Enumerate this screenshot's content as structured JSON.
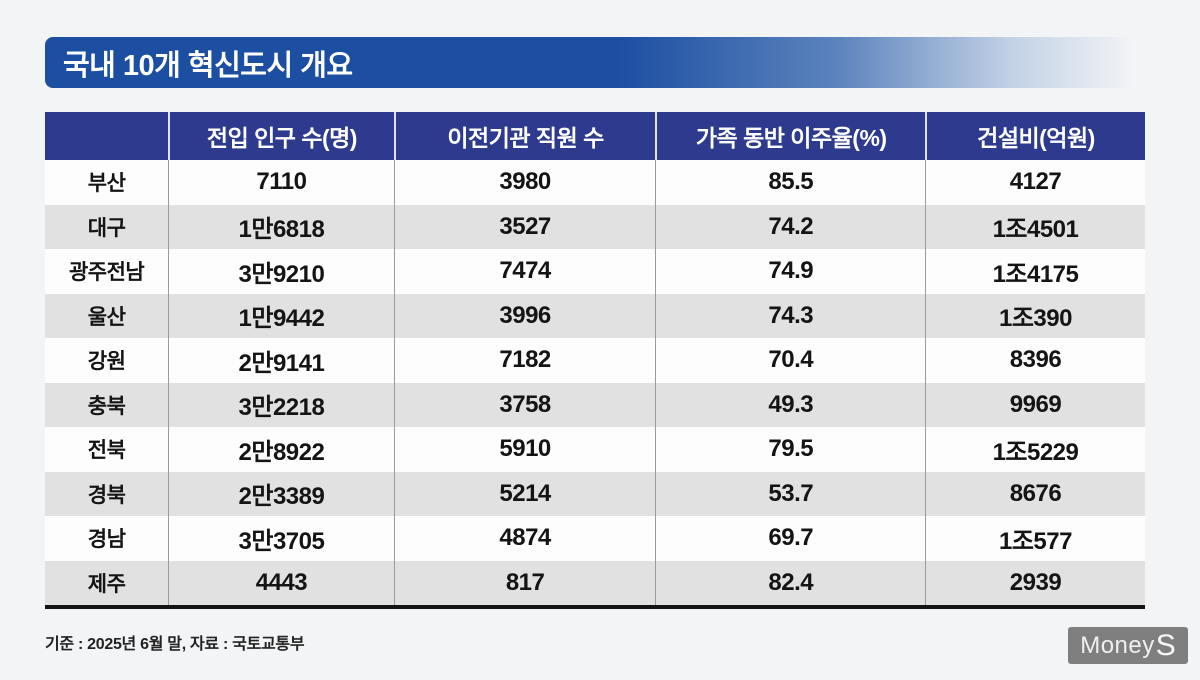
{
  "title": "국내 10개 혁신도시 개요",
  "footer": {
    "note": "기준 : 2025년 6월 말, 자료 : 국토교통부"
  },
  "logo": {
    "part1": "Money",
    "part2": "S"
  },
  "colors": {
    "title_bar_blue": "#1c4fa2",
    "header_navy": "#2e3a8e",
    "row_gray": "#e1e1e1",
    "row_white": "#fdfdfd",
    "table_bottom_border": "#141414",
    "background": "#f3f4f6",
    "logo_gray": "#7f7f7f"
  },
  "chart_data": {
    "type": "table",
    "title": "국내 10개 혁신도시 개요",
    "columns": [
      "",
      "전입 인구 수(명)",
      "이전기관 직원 수",
      "가족 동반 이주율(%)",
      "건설비(억원)"
    ],
    "rows": [
      [
        "부산",
        "7110",
        "3980",
        "85.5",
        "4127"
      ],
      [
        "대구",
        "1만6818",
        "3527",
        "74.2",
        "1조4501"
      ],
      [
        "광주전남",
        "3만9210",
        "7474",
        "74.9",
        "1조4175"
      ],
      [
        "울산",
        "1만9442",
        "3996",
        "74.3",
        "1조390"
      ],
      [
        "강원",
        "2만9141",
        "7182",
        "70.4",
        "8396"
      ],
      [
        "충북",
        "3만2218",
        "3758",
        "49.3",
        "9969"
      ],
      [
        "전북",
        "2만8922",
        "5910",
        "79.5",
        "1조5229"
      ],
      [
        "경북",
        "2만3389",
        "5214",
        "53.7",
        "8676"
      ],
      [
        "경남",
        "3만3705",
        "4874",
        "69.7",
        "1조577"
      ],
      [
        "제주",
        "4443",
        "817",
        "82.4",
        "2939"
      ]
    ],
    "source_note": "기준 : 2025년 6월 말, 자료 : 국토교통부",
    "layout": {
      "striped": true,
      "stripe_pattern": "odd-white-even-gray",
      "header_style": "navy-white-text"
    }
  }
}
